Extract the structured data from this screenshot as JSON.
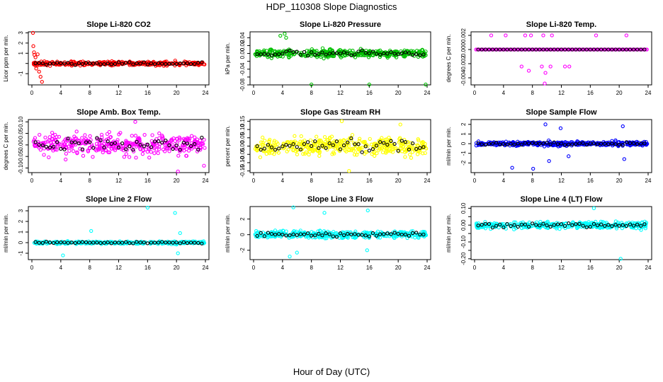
{
  "figure": {
    "title": "HDP_110308  Slope Diagnostics",
    "xlabel": "Hour of Day (UTC)"
  },
  "chart_data": [
    {
      "type": "scatter",
      "title": "Slope Li-820 CO2",
      "ylabel": "Licor ppm per min.",
      "xlim": [
        0,
        24
      ],
      "ylim": [
        -2.1,
        3.1
      ],
      "yticks": [
        -1,
        0,
        1,
        2,
        3
      ],
      "ytick_labels": [
        "-1",
        "",
        "1",
        "2",
        "3"
      ],
      "xticks": [
        0,
        4,
        8,
        12,
        16,
        20,
        24
      ],
      "color_hex": "#ff0000",
      "noise": 0.25,
      "outliers": [
        [
          0.15,
          3.0
        ],
        [
          0.2,
          1.7
        ],
        [
          0.3,
          1.1
        ],
        [
          0.35,
          0.85
        ],
        [
          0.5,
          0.6
        ],
        [
          0.6,
          -0.5
        ],
        [
          0.8,
          0.9
        ],
        [
          1.0,
          -0.8
        ],
        [
          1.2,
          -1.3
        ],
        [
          1.4,
          -1.8
        ]
      ],
      "series": [
        {
          "values": []
        }
      ]
    },
    {
      "type": "scatter",
      "title": "Slope Li-820 Pressure",
      "ylabel": "kPa per min.",
      "xlim": [
        0,
        24
      ],
      "ylim": [
        -0.08,
        0.055
      ],
      "yticks": [
        -0.08,
        -0.06,
        -0.04,
        -0.02,
        0,
        0.02,
        0.04
      ],
      "ytick_labels": [
        "-0.08",
        "",
        "-0.04",
        "",
        "0.00",
        "0.02",
        "0.04"
      ],
      "xticks": [
        0,
        4,
        8,
        12,
        16,
        20,
        24
      ],
      "color_hex": "#00c000",
      "noise": 0.012,
      "outliers": [
        [
          3.7,
          0.045
        ],
        [
          4.3,
          0.05
        ],
        [
          4.5,
          0.04
        ],
        [
          8.0,
          -0.079
        ],
        [
          16.0,
          -0.079
        ],
        [
          23.8,
          -0.079
        ]
      ],
      "series": [
        {
          "values": []
        }
      ]
    },
    {
      "type": "scatter",
      "title": "Slope Li-820 Temp.",
      "ylabel": "degrees C per min.",
      "xlim": [
        0,
        24
      ],
      "ylim": [
        -0.005,
        0.0025
      ],
      "yticks": [
        -0.004,
        -0.002,
        0,
        0.002
      ],
      "ytick_labels": [
        "-0.004",
        "-0.002",
        "0.000",
        "0.002"
      ],
      "xticks": [
        0,
        4,
        8,
        12,
        16,
        20,
        24
      ],
      "color_hex": "#ff00ff",
      "noise": 0,
      "outliers": [
        [
          2.3,
          0.002
        ],
        [
          4.3,
          0.002
        ],
        [
          7.0,
          0.002
        ],
        [
          7.8,
          0.002
        ],
        [
          9.5,
          0.002
        ],
        [
          10.7,
          0.002
        ],
        [
          16.8,
          0.002
        ],
        [
          21.0,
          0.002
        ],
        [
          6.5,
          -0.0024
        ],
        [
          9.3,
          -0.0024
        ],
        [
          9.8,
          -0.0033
        ],
        [
          10.5,
          -0.0024
        ],
        [
          12.5,
          -0.0024
        ],
        [
          13.1,
          -0.0024
        ],
        [
          9.7,
          -0.0048
        ],
        [
          7.5,
          -0.003
        ]
      ],
      "series": [
        {
          "values": []
        }
      ]
    },
    {
      "type": "scatter",
      "title": "Slope Amb. Box Temp.",
      "ylabel": "degrees C per min.",
      "xlim": [
        0,
        24
      ],
      "ylim": [
        -0.12,
        0.11
      ],
      "yticks": [
        -0.1,
        -0.05,
        0,
        0.05,
        0.1
      ],
      "ytick_labels": [
        "-0.10",
        "-0.05",
        "0.00",
        "0.05",
        "0.10"
      ],
      "xticks": [
        0,
        4,
        8,
        12,
        16,
        20,
        24
      ],
      "color_hex": "#ff00ff",
      "noise": 0.055,
      "outliers": [
        [
          14.3,
          0.1
        ],
        [
          20.2,
          -0.115
        ],
        [
          23.8,
          -0.09
        ]
      ],
      "series": [
        {
          "values": []
        }
      ]
    },
    {
      "type": "scatter",
      "title": "Slope Gas Stream RH",
      "ylabel": "percent per min.",
      "xlim": [
        0,
        24
      ],
      "ylim": [
        -0.16,
        0.16
      ],
      "yticks": [
        -0.15,
        -0.1,
        -0.05,
        0,
        0.05,
        0.1,
        0.15
      ],
      "ytick_labels": [
        "-0.15",
        "-0.10",
        "-0.05",
        "0.00",
        "0.05",
        "0.10",
        "0.15"
      ],
      "xticks": [
        0,
        4,
        8,
        12,
        16,
        20,
        24
      ],
      "color_hex": "#ffff00",
      "noise": 0.07,
      "outliers": [
        [
          13.2,
          -0.15
        ],
        [
          12.2,
          0.15
        ],
        [
          20.3,
          0.13
        ]
      ],
      "series": [
        {
          "values": []
        }
      ]
    },
    {
      "type": "scatter",
      "title": "Slope Sample Flow",
      "ylabel": "ml/min per min.",
      "xlim": [
        0,
        24
      ],
      "ylim": [
        -3.0,
        2.5
      ],
      "yticks": [
        -2,
        -1,
        0,
        1,
        2
      ],
      "ytick_labels": [
        "-2",
        "-1",
        "0",
        "1",
        "2"
      ],
      "xticks": [
        0,
        4,
        8,
        12,
        16,
        20,
        24
      ],
      "color_hex": "#0000ff",
      "noise": 0.3,
      "outliers": [
        [
          5.2,
          -2.5
        ],
        [
          8.1,
          -2.6
        ],
        [
          9.8,
          2.0
        ],
        [
          10.3,
          -1.8
        ],
        [
          11.9,
          1.6
        ],
        [
          13.0,
          -1.3
        ],
        [
          20.5,
          1.8
        ],
        [
          20.7,
          -1.6
        ]
      ],
      "series": [
        {
          "values": []
        }
      ]
    },
    {
      "type": "scatter",
      "title": "Slope Line 2 Flow",
      "ylabel": "ml/min per min.",
      "xlim": [
        0,
        24
      ],
      "ylim": [
        -1.6,
        3.4
      ],
      "yticks": [
        -1,
        0,
        1,
        2,
        3
      ],
      "ytick_labels": [
        "-1",
        "0",
        "1",
        "2",
        "3"
      ],
      "xticks": [
        0,
        4,
        8,
        12,
        16,
        20,
        24
      ],
      "color_hex": "#00ffff",
      "noise": 0.15,
      "outliers": [
        [
          16.0,
          3.3
        ],
        [
          19.8,
          2.8
        ],
        [
          8.2,
          1.1
        ],
        [
          20.2,
          -1.0
        ],
        [
          4.3,
          -1.2
        ],
        [
          20.5,
          0.9
        ]
      ],
      "series": [
        {
          "values": []
        }
      ]
    },
    {
      "type": "scatter",
      "title": "Slope Line 3 Flow",
      "ylabel": "ml/min per min.",
      "xlim": [
        0,
        24
      ],
      "ylim": [
        -3.2,
        3.6
      ],
      "yticks": [
        -2,
        0,
        2
      ],
      "ytick_labels": [
        "-2",
        "0",
        "2"
      ],
      "xticks": [
        0,
        4,
        8,
        12,
        16,
        20,
        24
      ],
      "color_hex": "#00ffff",
      "noise": 0.55,
      "outliers": [
        [
          5.5,
          3.5
        ],
        [
          15.8,
          3.1
        ],
        [
          9.8,
          2.8
        ],
        [
          5.0,
          -2.8
        ],
        [
          15.7,
          -2.0
        ],
        [
          6.0,
          -2.3
        ]
      ],
      "series": [
        {
          "values": []
        }
      ]
    },
    {
      "type": "scatter",
      "title": "Slope Line 4 (LT) Flow",
      "ylabel": "ml/min per min.",
      "xlim": [
        0,
        24
      ],
      "ylim": [
        -0.205,
        0.11
      ],
      "yticks": [
        -0.2,
        -0.15,
        -0.1,
        -0.05,
        0,
        0.05,
        0.1
      ],
      "ytick_labels": [
        "-0.20",
        "",
        "-0.10",
        "",
        "0.00",
        "",
        "0.10"
      ],
      "xticks": [
        0,
        4,
        8,
        12,
        16,
        20,
        24
      ],
      "color_hex": "#00ffff",
      "noise": 0.025,
      "outliers": [
        [
          16.5,
          0.1
        ],
        [
          20.2,
          -0.2
        ]
      ],
      "series": [
        {
          "values": []
        }
      ]
    }
  ]
}
